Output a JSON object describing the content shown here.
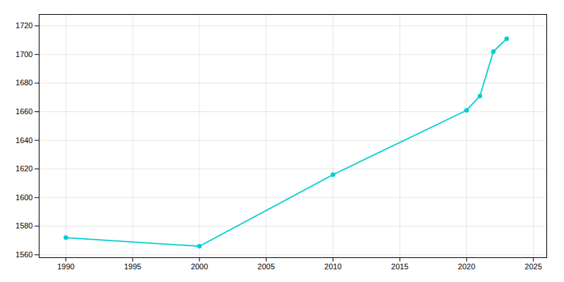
{
  "chart_data": {
    "type": "line",
    "x": [
      1990,
      2000,
      2010,
      2020,
      2021,
      2022,
      2023
    ],
    "values": [
      1572,
      1566,
      1616,
      1661,
      1671,
      1702,
      1711
    ],
    "color": "#00CED1",
    "marker": "circle",
    "xlim": [
      1988,
      2026
    ],
    "ylim": [
      1558,
      1728
    ],
    "xticks": [
      1990,
      1995,
      2000,
      2005,
      2010,
      2015,
      2020,
      2025
    ],
    "yticks": [
      1560,
      1580,
      1600,
      1620,
      1640,
      1660,
      1680,
      1700,
      1720
    ],
    "grid": true
  }
}
